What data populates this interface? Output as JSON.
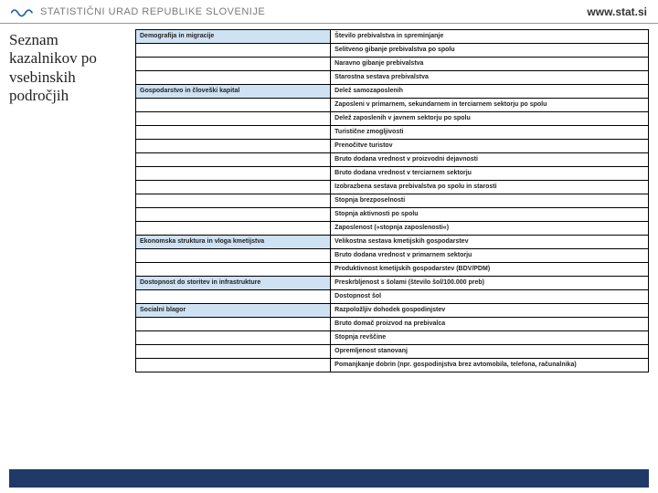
{
  "header": {
    "org_name": "STATISTIČNI URAD REPUBLIKE SLOVENIJE",
    "site_url": "www.stat.si",
    "wave_color": "#1f5fa8"
  },
  "sidebar": {
    "title": "Seznam kazalnikov po vsebinskih področjih"
  },
  "colors": {
    "category_bg": "#cfe2f3",
    "border": "#000000",
    "footer_bg": "#1f3a66"
  },
  "categories": [
    {
      "name": "Demografija in migracije",
      "indicators": [
        "Število prebivalstva in spreminjanje",
        "Selitveno gibanje prebivalstva po spolu",
        "Naravno gibanje prebivalstva",
        "Starostna sestava prebivalstva"
      ]
    },
    {
      "name": "Gospodarstvo in človeški kapital",
      "indicators": [
        "Delež samozaposlenih",
        "Zaposleni v primarnem, sekundarnem in terciarnem sektorju po spolu",
        "Delež zaposlenih v javnem sektorju po spolu",
        "Turistične zmogljivosti",
        "Prenočitve turistov",
        "Bruto dodana vrednost v proizvodni dejavnosti",
        "Bruto dodana vrednost v terciarnem sektorju",
        "Izobrazbena sestava prebivalstva po spolu in starosti",
        "Stopnja brezposelnosti",
        "Stopnja aktivnosti po spolu",
        "Zaposlenost (»stopnja zaposlenosti«)"
      ]
    },
    {
      "name": "Ekonomska struktura in vloga kmetijstva",
      "indicators": [
        "Velikostna sestava kmetijskih gospodarstev",
        "Bruto dodana vrednost v primarnem sektorju",
        "Produktivnost kmetijskih gospodarstev (BDV/PDM)"
      ]
    },
    {
      "name": "Dostopnost do storitev in infrastrukture",
      "indicators": [
        "Preskrbljenost s šolami (število šol/100.000 preb)",
        "Dostopnost šol"
      ]
    },
    {
      "name": "Socialni blagor",
      "indicators": [
        "Razpoložljiv dohodek gospodinjstev",
        "Bruto domač proizvod na prebivalca",
        "Stopnja revščine",
        "Opremljenost stanovanj",
        "Pomanjkanje dobrin (npr. gospodinjstva brez avtomobila, telefona, računalnika)"
      ]
    }
  ]
}
